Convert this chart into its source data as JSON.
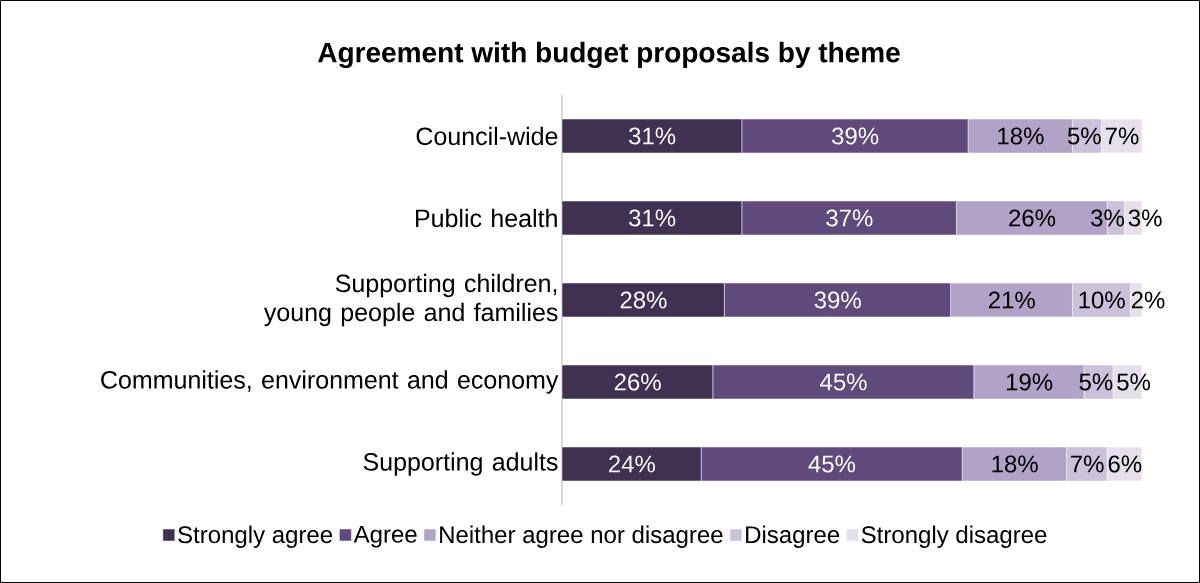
{
  "chart_data": {
    "type": "bar",
    "orientation": "horizontal",
    "stacked": true,
    "title": "Agreement with budget proposals by theme",
    "categories": [
      "Council-wide",
      "Public health",
      "Supporting children, young people and families",
      "Communities, environment and economy",
      "Supporting adults"
    ],
    "series": [
      {
        "name": "Strongly agree",
        "color": "#403152",
        "values": [
          31,
          31,
          28,
          26,
          24
        ],
        "value_labels": [
          "31%",
          "31%",
          "28%",
          "26%",
          "24%"
        ]
      },
      {
        "name": "Agree",
        "color": "#604a7b",
        "values": [
          39,
          37,
          39,
          45,
          45
        ],
        "value_labels": [
          "39%",
          "37%",
          "39%",
          "45%",
          "45%"
        ]
      },
      {
        "name": "Neither agree nor disagree",
        "color": "#b3a2c7",
        "values": [
          18,
          26,
          21,
          19,
          18
        ],
        "value_labels": [
          "18%",
          "26%",
          "21%",
          "19%",
          "18%"
        ]
      },
      {
        "name": "Disagree",
        "color": "#ccc1da",
        "values": [
          5,
          3,
          10,
          5,
          7
        ],
        "value_labels": [
          "5%",
          "3%",
          "10%",
          "5%",
          "7%"
        ]
      },
      {
        "name": "Strongly disagree",
        "color": "#e6e0ec",
        "values": [
          7,
          3,
          2,
          5,
          6
        ],
        "value_labels": [
          "7%",
          "3%",
          "2%",
          "5%",
          "6%"
        ]
      }
    ],
    "legend": "bottom"
  }
}
